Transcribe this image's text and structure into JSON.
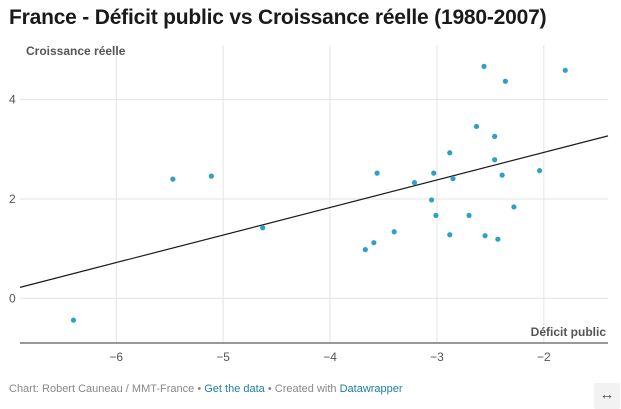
{
  "title": "France - Déficit public vs Croissance réelle (1980-2007)",
  "footer": {
    "chart_credit": "Chart: Robert Cauneau / MMT-France",
    "sep1": "•",
    "data_link": "Get the data",
    "sep2": "•",
    "created_with": "Created with",
    "tool_link": "Datawrapper"
  },
  "expand_icon": "↔",
  "chart_data": {
    "type": "scatter",
    "xlabel": "Déficit public",
    "ylabel": "Croissance réelle",
    "xlim": [
      -6.9,
      -1.4
    ],
    "ylim": [
      -0.9,
      5.1
    ],
    "x_ticks": [
      -6,
      -5,
      -4,
      -3,
      -2
    ],
    "x_tick_labels": [
      "−6",
      "−5",
      "−4",
      "−3",
      "−2"
    ],
    "y_ticks": [
      0,
      2,
      4
    ],
    "y_tick_labels": [
      "0",
      "2",
      "4"
    ],
    "grid": true,
    "point_color": "#2fa0c4",
    "trendline": {
      "x": [
        -6.9,
        -1.4
      ],
      "y": [
        0.22,
        3.27
      ],
      "color": "#1a1a1a"
    },
    "points": [
      {
        "x": -6.4,
        "y": -0.44
      },
      {
        "x": -5.47,
        "y": 2.4
      },
      {
        "x": -5.11,
        "y": 2.46
      },
      {
        "x": -4.63,
        "y": 1.42
      },
      {
        "x": -3.67,
        "y": 0.98
      },
      {
        "x": -3.59,
        "y": 1.12
      },
      {
        "x": -3.56,
        "y": 2.52
      },
      {
        "x": -3.4,
        "y": 1.34
      },
      {
        "x": -3.21,
        "y": 2.33
      },
      {
        "x": -3.05,
        "y": 1.98
      },
      {
        "x": -3.03,
        "y": 2.52
      },
      {
        "x": -3.01,
        "y": 1.67
      },
      {
        "x": -2.88,
        "y": 2.93
      },
      {
        "x": -2.88,
        "y": 1.28
      },
      {
        "x": -2.85,
        "y": 2.41
      },
      {
        "x": -2.7,
        "y": 1.67
      },
      {
        "x": -2.63,
        "y": 3.46
      },
      {
        "x": -2.56,
        "y": 4.67
      },
      {
        "x": -2.55,
        "y": 1.26
      },
      {
        "x": -2.46,
        "y": 3.26
      },
      {
        "x": -2.46,
        "y": 2.79
      },
      {
        "x": -2.43,
        "y": 1.19
      },
      {
        "x": -2.39,
        "y": 2.48
      },
      {
        "x": -2.36,
        "y": 4.37
      },
      {
        "x": -2.28,
        "y": 1.84
      },
      {
        "x": -2.04,
        "y": 2.57
      },
      {
        "x": -1.8,
        "y": 4.59
      }
    ]
  }
}
